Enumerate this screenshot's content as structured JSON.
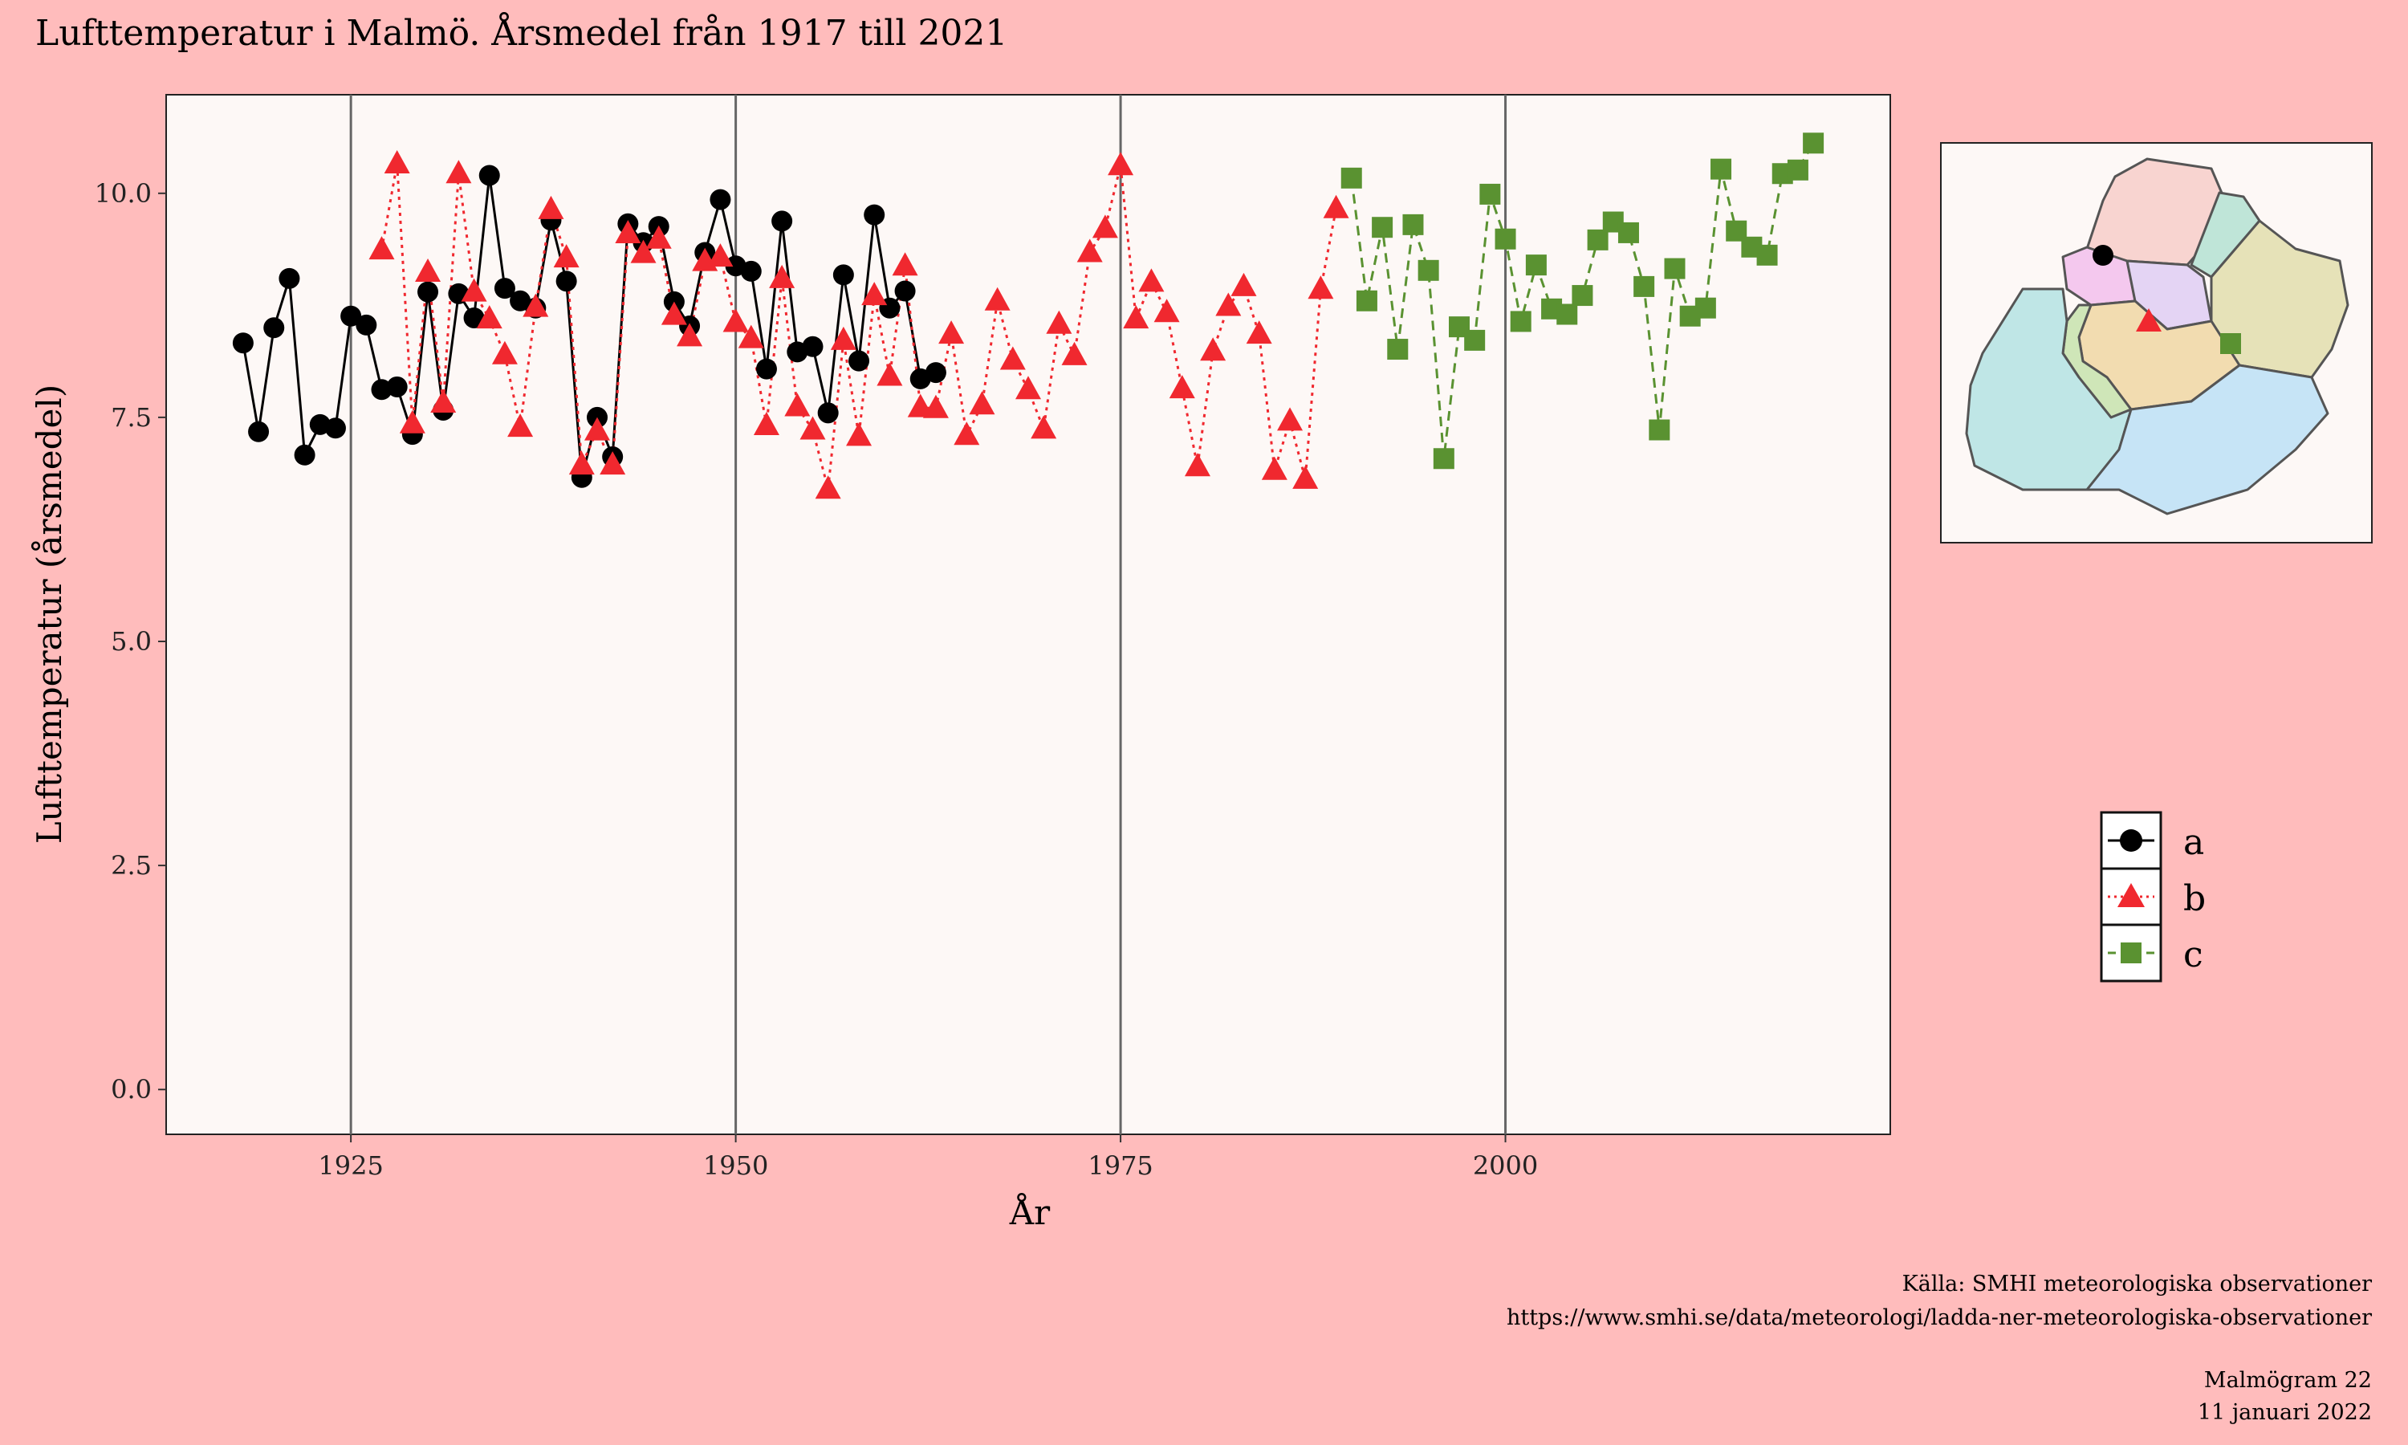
{
  "chart_data": {
    "type": "line",
    "title": "Lufttemperatur i Malmö. Årsmedel från 1917 till 2021",
    "xlabel": "År",
    "ylabel": "Lufttemperatur (årsmedel)",
    "xlim": [
      1913,
      2025
    ],
    "ylim": [
      -0.5,
      11.1
    ],
    "x_ticks": [
      1925,
      1950,
      1975,
      2000
    ],
    "x_tick_labels": [
      "1925",
      "1950",
      "1975",
      "2000"
    ],
    "y_ticks": [
      0,
      2.5,
      5,
      7.5,
      10
    ],
    "y_tick_labels": [
      "0.0",
      "2.5",
      "5.0",
      "7.5",
      "10.0"
    ],
    "vertical_lines": [
      1925,
      1950,
      1975,
      2000
    ],
    "grid": false,
    "legend_position": "right",
    "series": [
      {
        "name": "a",
        "color": "#000000",
        "line_style": "solid",
        "marker": "circle",
        "x": [
          1918,
          1919,
          1920,
          1921,
          1922,
          1923,
          1924,
          1925,
          1926,
          1927,
          1928,
          1929,
          1930,
          1931,
          1932,
          1933,
          1934,
          1935,
          1936,
          1937,
          1938,
          1939,
          1940,
          1941,
          1942,
          1943,
          1944,
          1945,
          1946,
          1947,
          1948,
          1949,
          1950,
          1951,
          1952,
          1953,
          1954,
          1955,
          1956,
          1957,
          1958,
          1959,
          1960,
          1961,
          1962,
          1963
        ],
        "y": [
          8.33,
          7.34,
          8.5,
          9.05,
          7.08,
          7.42,
          7.38,
          8.63,
          8.53,
          7.81,
          7.84,
          7.31,
          8.9,
          7.58,
          8.88,
          8.61,
          10.2,
          8.94,
          8.8,
          8.72,
          9.7,
          9.02,
          6.83,
          7.5,
          7.06,
          9.66,
          9.45,
          9.63,
          8.79,
          8.52,
          9.34,
          9.93,
          9.19,
          9.13,
          8.04,
          9.69,
          8.23,
          8.29,
          7.55,
          9.09,
          8.13,
          9.76,
          8.72,
          8.91,
          7.93,
          8.0
        ]
      },
      {
        "name": "b",
        "color": "#f0282f",
        "line_style": "dotted",
        "marker": "triangle",
        "x": [
          1927,
          1928,
          1929,
          1930,
          1931,
          1932,
          1933,
          1934,
          1935,
          1936,
          1937,
          1938,
          1939,
          1940,
          1941,
          1942,
          1943,
          1944,
          1945,
          1946,
          1947,
          1948,
          1949,
          1950,
          1951,
          1952,
          1953,
          1954,
          1955,
          1956,
          1957,
          1958,
          1959,
          1960,
          1961,
          1962,
          1963,
          1964,
          1965,
          1966,
          1967,
          1968,
          1969,
          1970,
          1971,
          1972,
          1973,
          1974,
          1975,
          1976,
          1977,
          1978,
          1979,
          1980,
          1981,
          1982,
          1983,
          1984,
          1985,
          1986,
          1987,
          1988,
          1989
        ],
        "y": [
          9.37,
          10.33,
          7.43,
          9.12,
          7.66,
          10.22,
          8.9,
          8.6,
          8.2,
          7.39,
          8.73,
          9.82,
          9.28,
          6.97,
          7.35,
          6.97,
          9.55,
          9.33,
          9.49,
          8.64,
          8.4,
          9.24,
          9.29,
          8.56,
          8.38,
          7.41,
          9.05,
          7.62,
          7.36,
          6.7,
          8.36,
          7.29,
          8.86,
          7.96,
          9.19,
          7.61,
          7.6,
          8.43,
          7.3,
          7.64,
          8.8,
          8.14,
          7.81,
          7.37,
          8.54,
          8.19,
          9.34,
          9.61,
          10.31,
          8.6,
          9.01,
          8.67,
          7.82,
          6.95,
          8.24,
          8.74,
          8.96,
          8.43,
          6.91,
          7.46,
          6.81,
          8.93,
          9.83
        ]
      },
      {
        "name": "c",
        "color": "#5a9231",
        "line_style": "dashed",
        "marker": "square",
        "x": [
          1990,
          1991,
          1992,
          1993,
          1994,
          1995,
          1996,
          1997,
          1998,
          1999,
          2000,
          2001,
          2002,
          2003,
          2004,
          2005,
          2006,
          2007,
          2008,
          2009,
          2010,
          2011,
          2012,
          2013,
          2014,
          2015,
          2016,
          2017,
          2018,
          2019,
          2020
        ],
        "y": [
          10.17,
          8.8,
          9.62,
          8.26,
          9.65,
          9.14,
          7.04,
          8.51,
          8.36,
          9.99,
          9.49,
          8.57,
          9.2,
          8.71,
          8.65,
          8.86,
          9.48,
          9.68,
          9.56,
          8.96,
          7.36,
          9.16,
          8.63,
          8.72,
          10.27,
          9.58,
          9.4,
          9.31,
          10.22,
          10.26,
          10.56
        ]
      }
    ],
    "inset_map": {
      "markers": [
        {
          "series": "a",
          "marker": "circle"
        },
        {
          "series": "b",
          "marker": "triangle"
        },
        {
          "series": "c",
          "marker": "square"
        }
      ]
    }
  },
  "caption": {
    "source_line": "Källa: SMHI meteorologiska observationer",
    "url_line": "https://www.smhi.se/data/meteorologi/ladda-ner-meteorologiska-observationer",
    "publication": "Malmögram 22",
    "date": "11 januari 2022"
  },
  "colors": {
    "page_background": "#ffbcbc",
    "panel_background": "#fdf8f6"
  }
}
